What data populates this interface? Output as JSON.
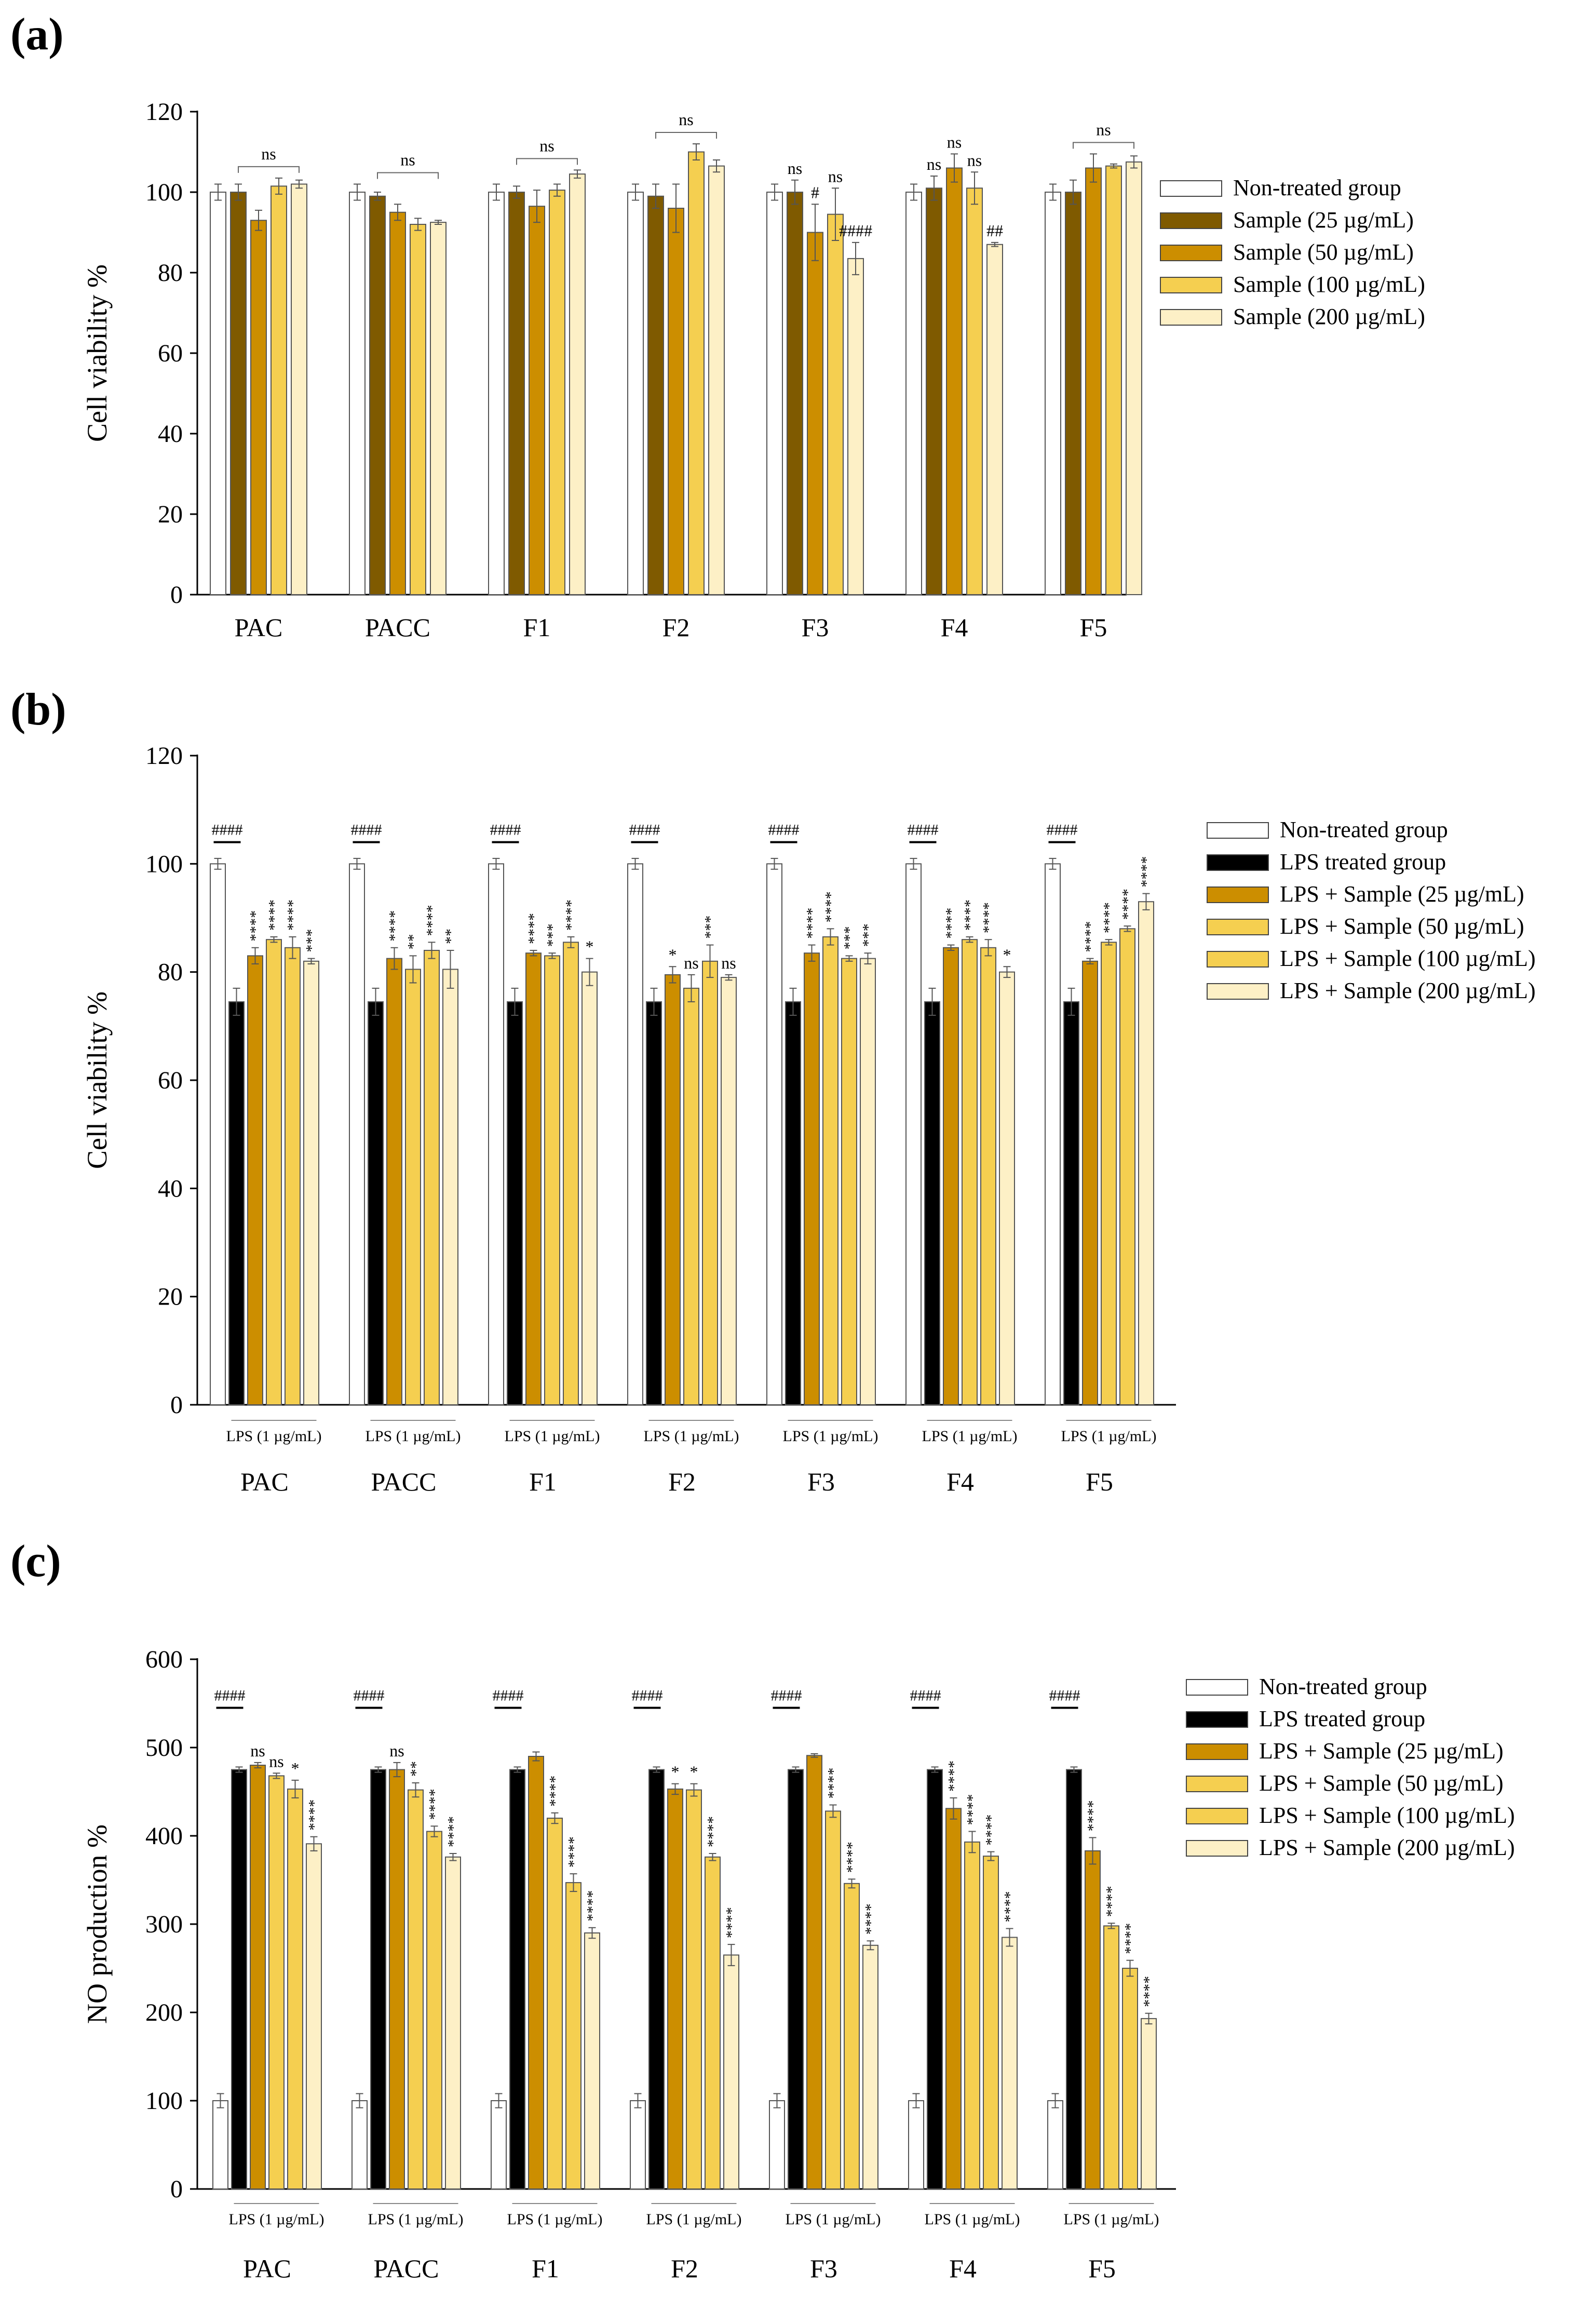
{
  "colors": {
    "non_treated": "#ffffff",
    "lps": "#000000",
    "s25": "#7f5a00",
    "s50": "#cc8e00",
    "s100": "#f5cf50",
    "s200": "#fdf0c6",
    "axis": "#000000",
    "error": "#555555"
  },
  "chart_data": [
    {
      "panel": "(a)",
      "type": "bar",
      "ylabel": "Cell viability %",
      "ylim": [
        0,
        120
      ],
      "yticks": [
        0,
        20,
        40,
        60,
        80,
        100,
        120
      ],
      "categories": [
        "PAC",
        "PACC",
        "F1",
        "F2",
        "F3",
        "F4",
        "F5"
      ],
      "legend": [
        "Non-treated group",
        "Sample (25 µg/mL)",
        "Sample (50 µg/mL)",
        "Sample (100 µg/mL)",
        "Sample (200 µg/mL)"
      ],
      "series_keys": [
        "non_treated",
        "s25",
        "s50",
        "s100",
        "s200"
      ],
      "values": [
        [
          100,
          100,
          93,
          101.5,
          102
        ],
        [
          100,
          99,
          95,
          92,
          92.5
        ],
        [
          100,
          100,
          96.5,
          100.5,
          104.5
        ],
        [
          100,
          99,
          96,
          110,
          106.5
        ],
        [
          100,
          100,
          90,
          94.5,
          83.5
        ],
        [
          100,
          101,
          106,
          101,
          87
        ],
        [
          100,
          100,
          106,
          106.5,
          107.5
        ]
      ],
      "errors": [
        [
          2,
          2,
          2.5,
          2,
          1
        ],
        [
          2,
          1,
          2,
          1.5,
          0.5
        ],
        [
          2,
          1.5,
          4,
          1.5,
          1
        ],
        [
          2,
          3,
          6,
          2,
          1.5
        ],
        [
          2,
          3,
          7,
          6.5,
          4
        ],
        [
          2,
          3,
          3.5,
          4,
          0.5
        ],
        [
          2,
          3,
          3.5,
          0.5,
          1.5
        ]
      ],
      "group_sig": [
        "ns",
        "ns",
        "ns",
        "ns",
        "",
        "",
        "ns"
      ],
      "bar_sig": [
        [
          "",
          "",
          "",
          "",
          ""
        ],
        [
          "",
          "",
          "",
          "",
          ""
        ],
        [
          "",
          "",
          "",
          "",
          ""
        ],
        [
          "",
          "",
          "",
          "",
          ""
        ],
        [
          "",
          "ns",
          "#",
          "ns",
          "####"
        ],
        [
          "",
          "ns",
          "ns",
          "ns",
          "##"
        ],
        [
          "",
          "",
          "",
          "",
          ""
        ]
      ],
      "xlabel_sub": ""
    },
    {
      "panel": "(b)",
      "type": "bar",
      "ylabel": "Cell viability %",
      "ylim": [
        0,
        120
      ],
      "yticks": [
        0,
        20,
        40,
        60,
        80,
        100,
        120
      ],
      "categories": [
        "PAC",
        "PACC",
        "F1",
        "F2",
        "F3",
        "F4",
        "F5"
      ],
      "legend": [
        "Non-treated group",
        "LPS treated group",
        "LPS + Sample (25 µg/mL)",
        "LPS + Sample (50 µg/mL)",
        "LPS + Sample (100 µg/mL)",
        "LPS + Sample (200 µg/mL)"
      ],
      "series_keys": [
        "non_treated",
        "lps",
        "s50",
        "s100",
        "s100",
        "s200"
      ],
      "values": [
        [
          100,
          74.5,
          83,
          86,
          84.5,
          82
        ],
        [
          100,
          74.5,
          82.5,
          80.5,
          84,
          80.5
        ],
        [
          100,
          74.5,
          83.5,
          83,
          85.5,
          80
        ],
        [
          100,
          74.5,
          79.5,
          77,
          82,
          79
        ],
        [
          100,
          74.5,
          83.5,
          86.5,
          82.5,
          82.5
        ],
        [
          100,
          74.5,
          84.5,
          86,
          84.5,
          80
        ],
        [
          100,
          74.5,
          82,
          85.5,
          88,
          93
        ]
      ],
      "errors": [
        [
          1,
          2.5,
          1.5,
          0.5,
          2,
          0.5
        ],
        [
          1,
          2.5,
          2,
          2.5,
          1.5,
          3.5
        ],
        [
          1,
          2.5,
          0.5,
          0.5,
          1,
          2.5
        ],
        [
          1,
          2.5,
          1.5,
          2.5,
          3,
          0.5
        ],
        [
          1,
          2.5,
          1.5,
          1.5,
          0.5,
          1
        ],
        [
          1,
          2.5,
          0.5,
          0.5,
          1.5,
          1
        ],
        [
          1,
          2.5,
          0.5,
          0.5,
          0.5,
          1.5
        ]
      ],
      "group_sig": [
        "####",
        "####",
        "####",
        "####",
        "####",
        "####",
        "####"
      ],
      "bar_sig": [
        [
          "",
          "",
          "****",
          "****",
          "****",
          "***"
        ],
        [
          "",
          "",
          "****",
          "**",
          "****",
          "**"
        ],
        [
          "",
          "",
          "****",
          "***",
          "****",
          "*"
        ],
        [
          "",
          "",
          "*",
          "ns",
          "***",
          "ns"
        ],
        [
          "",
          "",
          "****",
          "****",
          "***",
          "***"
        ],
        [
          "",
          "",
          "****",
          "****",
          "****",
          "*"
        ],
        [
          "",
          "",
          "****",
          "****",
          "****",
          "****"
        ]
      ],
      "xlabel_sub": "LPS (1 µg/mL)"
    },
    {
      "panel": "(c)",
      "type": "bar",
      "ylabel": "NO production %",
      "ylim": [
        0,
        600
      ],
      "yticks": [
        0,
        100,
        200,
        300,
        400,
        500,
        600
      ],
      "categories": [
        "PAC",
        "PACC",
        "F1",
        "F2",
        "F3",
        "F4",
        "F5"
      ],
      "legend": [
        "Non-treated group",
        "LPS treated group",
        "LPS + Sample (25 µg/mL)",
        "LPS + Sample (50 µg/mL)",
        "LPS + Sample (100 µg/mL)",
        "LPS + Sample (200 µg/mL)"
      ],
      "series_keys": [
        "non_treated",
        "lps",
        "s50",
        "s100",
        "s100",
        "s200"
      ],
      "values": [
        [
          100,
          475,
          480,
          468,
          453,
          391
        ],
        [
          100,
          475,
          475,
          452,
          405,
          376
        ],
        [
          100,
          475,
          490,
          420,
          347,
          290
        ],
        [
          100,
          475,
          453,
          452,
          376,
          265
        ],
        [
          100,
          475,
          491,
          428,
          346,
          276
        ],
        [
          100,
          475,
          431,
          393,
          377,
          285
        ],
        [
          100,
          475,
          383,
          298,
          250,
          193
        ]
      ],
      "errors": [
        [
          8,
          3,
          3,
          3,
          10,
          8
        ],
        [
          8,
          3,
          8,
          8,
          6,
          4
        ],
        [
          8,
          3,
          5,
          6,
          10,
          6
        ],
        [
          8,
          3,
          6,
          7,
          4,
          12
        ],
        [
          8,
          3,
          2,
          7,
          5,
          5
        ],
        [
          8,
          3,
          12,
          12,
          5,
          10
        ],
        [
          8,
          3,
          15,
          3,
          9,
          6
        ]
      ],
      "group_sig": [
        "####",
        "####",
        "####",
        "####",
        "####",
        "####",
        "####"
      ],
      "bar_sig": [
        [
          "",
          "",
          "ns",
          "ns",
          "*",
          "****"
        ],
        [
          "",
          "",
          "ns",
          "**",
          "****",
          "****"
        ],
        [
          "",
          "",
          "",
          "****",
          "****",
          "****"
        ],
        [
          "",
          "",
          "*",
          "*",
          "****",
          "****"
        ],
        [
          "",
          "",
          "",
          "****",
          "****",
          "****"
        ],
        [
          "",
          "",
          "****",
          "****",
          "****",
          "****"
        ],
        [
          "",
          "",
          "****",
          "****",
          "****",
          "****"
        ]
      ],
      "xlabel_sub": "LPS (1 µg/mL)"
    }
  ]
}
